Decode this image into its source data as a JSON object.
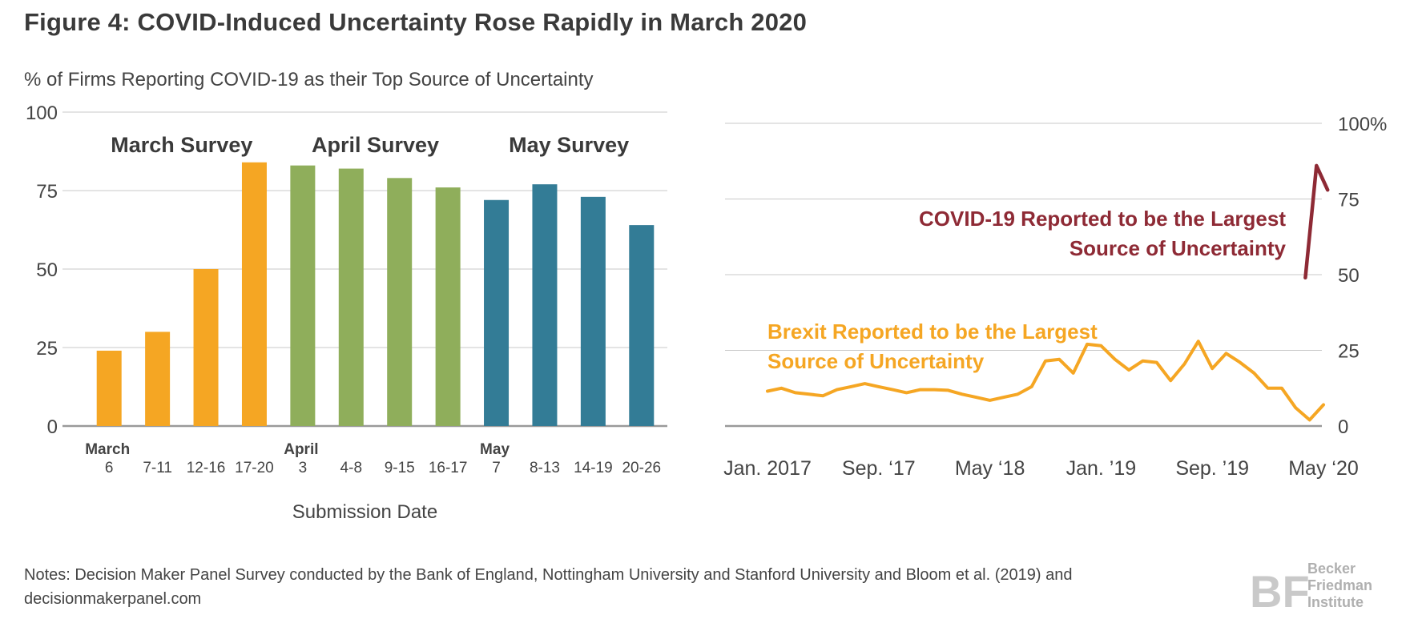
{
  "title": "Figure 4: COVID-Induced Uncertainty Rose Rapidly in March 2020",
  "notes": "Notes: Decision Maker Panel Survey conducted by the Bank of England, Nottingham University and Stanford University and Bloom et al. (2019) and decisionmakerpanel.com",
  "logo": {
    "mark": "BF",
    "line1": "Becker",
    "line2": "Friedman",
    "line3": "Institute"
  },
  "colors": {
    "march": "#F5A623",
    "april": "#8FAE5B",
    "may": "#337C96",
    "covid": "#8E2A35",
    "brexit": "#F5A623",
    "grid": "#c8c8c8",
    "axis": "#999999"
  },
  "chart_data": [
    {
      "type": "bar",
      "ylabel": "% of Firms Reporting COVID-19 as their Top Source of Uncertainty",
      "xlabel": "Submission Date",
      "ylim": [
        0,
        100
      ],
      "yticks": [
        "0",
        "25",
        "50",
        "75",
        "100"
      ],
      "grid": true,
      "groups": [
        {
          "name": "March Survey",
          "color_key": "march"
        },
        {
          "name": "April Survey",
          "color_key": "april"
        },
        {
          "name": "May Survey",
          "color_key": "may"
        }
      ],
      "bars": [
        {
          "month": "March",
          "label": "6",
          "value": 24,
          "group": 0
        },
        {
          "month": "",
          "label": "7-11",
          "value": 30,
          "group": 0
        },
        {
          "month": "",
          "label": "12-16",
          "value": 50,
          "group": 0
        },
        {
          "month": "",
          "label": "17-20",
          "value": 84,
          "group": 0
        },
        {
          "month": "April",
          "label": "3",
          "value": 83,
          "group": 1
        },
        {
          "month": "",
          "label": "4-8",
          "value": 82,
          "group": 1
        },
        {
          "month": "",
          "label": "9-15",
          "value": 79,
          "group": 1
        },
        {
          "month": "",
          "label": "16-17",
          "value": 76,
          "group": 1
        },
        {
          "month": "May",
          "label": "7",
          "value": 72,
          "group": 2
        },
        {
          "month": "",
          "label": "8-13",
          "value": 77,
          "group": 2
        },
        {
          "month": "",
          "label": "14-19",
          "value": 73,
          "group": 2
        },
        {
          "month": "",
          "label": "20-26",
          "value": 64,
          "group": 2
        }
      ]
    },
    {
      "type": "line",
      "ylim": [
        0,
        100
      ],
      "yticks": [
        "0",
        "25",
        "50",
        "75",
        "100%"
      ],
      "grid": true,
      "xticks": [
        "Jan. 2017",
        "Sep. ‘17",
        "May ‘18",
        "Jan. ’19",
        "Sep. ’19",
        "May ‘20"
      ],
      "x_index_range": [
        0,
        40
      ],
      "xtick_positions": [
        0,
        8,
        16,
        24,
        32,
        40
      ],
      "series": [
        {
          "name": "Brexit Reported to be the Largest Source of Uncertainty",
          "color_key": "brexit",
          "annotation_lines": [
            "Brexit Reported to be the Largest",
            "Source of Uncertainty"
          ],
          "x": [
            0,
            1,
            2,
            3,
            4,
            5,
            6,
            7,
            8,
            9,
            10,
            11,
            12,
            13,
            14,
            15,
            16,
            17,
            18,
            19,
            20,
            21,
            22,
            23,
            24,
            25,
            26,
            27,
            28,
            29,
            30,
            31,
            32,
            33,
            34,
            35,
            36,
            37,
            38,
            39,
            40
          ],
          "values": [
            11.5,
            12.5,
            11,
            10.5,
            10,
            12,
            13,
            14,
            13,
            12,
            11,
            12,
            12,
            11.8,
            10.5,
            9.5,
            8.5,
            9.5,
            10.5,
            13,
            21.5,
            22,
            17.5,
            27,
            26.5,
            22,
            18.5,
            21.5,
            21,
            15,
            20.5,
            28,
            19,
            24,
            21,
            17.5,
            12.5,
            12.5,
            6,
            2,
            7
          ]
        },
        {
          "name": "COVID-19 Reported to be the Largest Source of Uncertainty",
          "color_key": "covid",
          "annotation_lines": [
            "COVID-19 Reported to be the Largest",
            "Source of Uncertainty"
          ],
          "x": [
            38.7,
            39.5,
            40.3
          ],
          "values": [
            49,
            86,
            78
          ]
        }
      ]
    }
  ]
}
